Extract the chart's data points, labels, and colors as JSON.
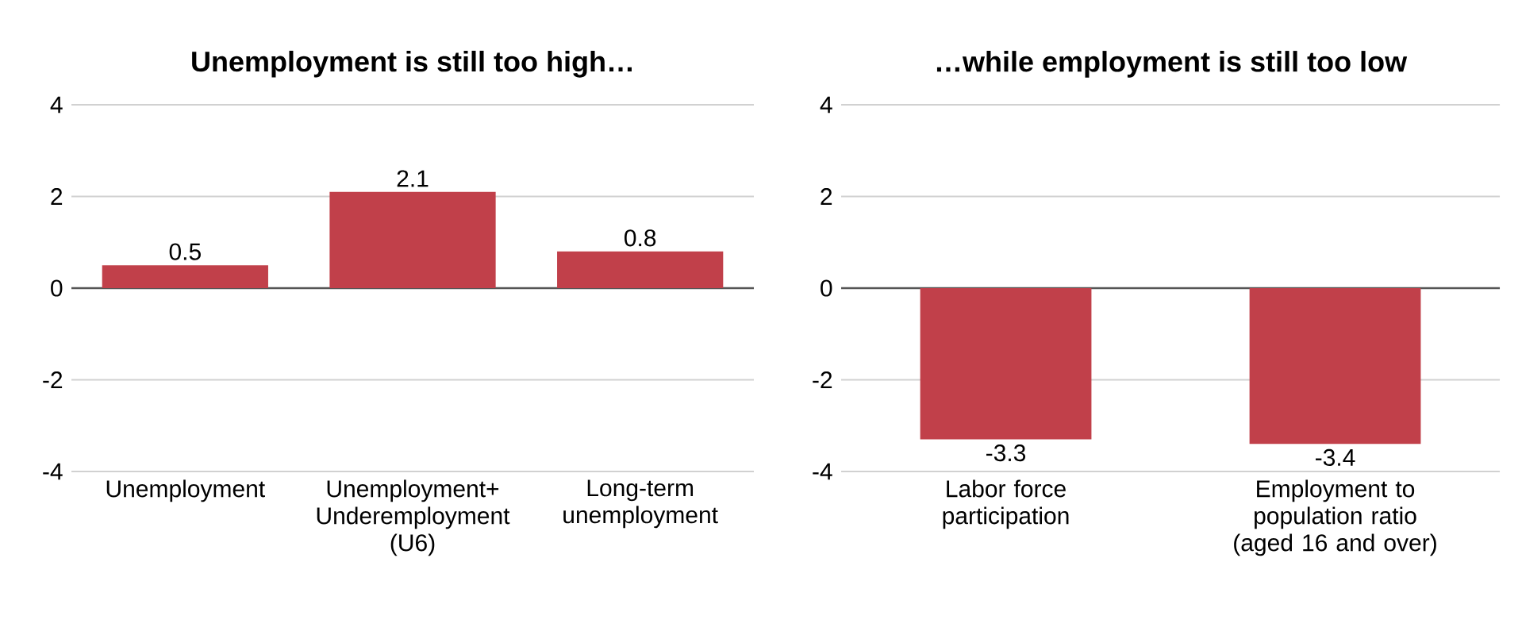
{
  "chart_data": [
    {
      "type": "bar",
      "title": "Unemployment is still too high…",
      "categories": [
        "Unemployment",
        "Unemployment+ Underemployment (U6)",
        "Long-term unemployment"
      ],
      "values": [
        0.5,
        2.1,
        0.8
      ],
      "color": "#c1404a",
      "ylim": [
        -4,
        4
      ],
      "yticks": [
        -4,
        -2,
        0,
        2,
        4
      ],
      "grid": "y",
      "data_labels": true,
      "ref_lines": [
        {
          "axis": "y",
          "value": 0,
          "color": "#555555"
        }
      ]
    },
    {
      "type": "bar",
      "title": "…while employment is still too low",
      "categories": [
        "Labor force participation",
        "Employment to population ratio (aged 16 and over)"
      ],
      "values": [
        -3.3,
        -3.4
      ],
      "color": "#c1404a",
      "ylim": [
        -4,
        4
      ],
      "yticks": [
        -4,
        -2,
        0,
        2,
        4
      ],
      "grid": "y",
      "data_labels": true,
      "ref_lines": [
        {
          "axis": "y",
          "value": 0,
          "color": "#555555"
        }
      ]
    }
  ]
}
